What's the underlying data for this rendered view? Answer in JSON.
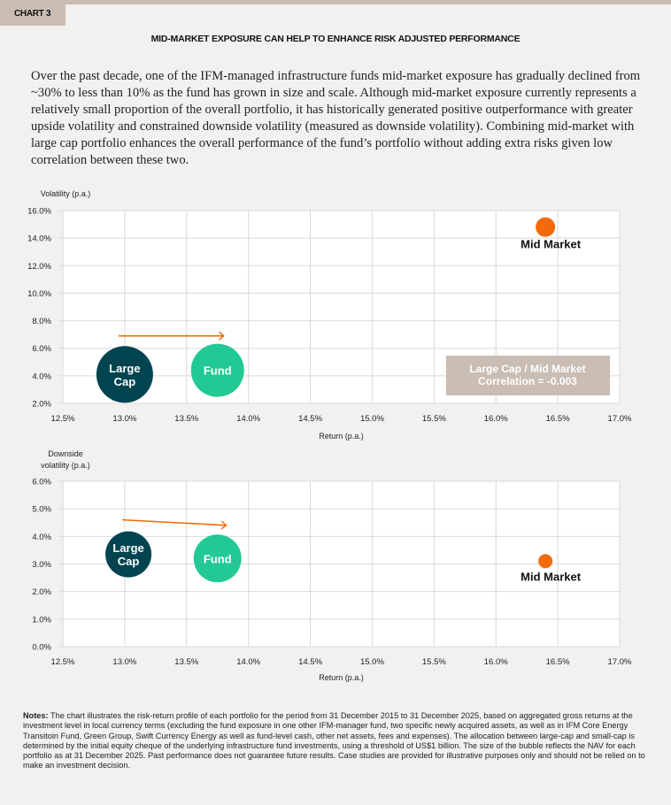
{
  "header": {
    "tag": "CHART 3",
    "title": "MID-MARKET EXPOSURE CAN HELP TO ENHANCE RISK ADJUSTED PERFORMANCE",
    "intro": "Over the past decade, one of the IFM-managed infrastructure funds mid-market exposure has gradually declined from ~30% to less than 10% as the fund has grown in size and scale. Although mid-market exposure currently represents a relatively small proportion of the overall portfolio, it has historically generated positive outperformance with greater upside volatility and constrained downside volatility (measured as downside volatility). Combining mid-market with large cap portfolio enhances the overall performance of the fund’s portfolio without adding extra risks given low correlation between these two."
  },
  "colors": {
    "large_cap": "#00444f",
    "fund": "#22c994",
    "mid_market": "#f26a0a",
    "arrow": "#f26a0a",
    "annotation_bg": "#c9bdb4",
    "grid": "#d9d9d9"
  },
  "chart_data": [
    {
      "type": "scatter",
      "ylabel": "Volatility (p.a.)",
      "xlabel": "Return (p.a.)",
      "xlim": [
        12.5,
        17.0
      ],
      "ylim": [
        2.0,
        16.0
      ],
      "xticks": [
        "12.5%",
        "13.0%",
        "13.5%",
        "14.0%",
        "14.5%",
        "15.0%",
        "15.5%",
        "16.0%",
        "16.5%",
        "17.0%"
      ],
      "yticks": [
        "2.0%",
        "4.0%",
        "6.0%",
        "8.0%",
        "10.0%",
        "12.0%",
        "14.0%",
        "16.0%"
      ],
      "grid": true,
      "points": [
        {
          "name": "Large Cap",
          "x": 13.0,
          "y": 4.1,
          "label_lines": [
            "Large",
            "Cap"
          ]
        },
        {
          "name": "Fund",
          "x": 13.75,
          "y": 4.4,
          "label_lines": [
            "Fund"
          ]
        },
        {
          "name": "Mid Market",
          "x": 16.4,
          "y": 14.8,
          "label_lines": [
            "Mid Market"
          ]
        }
      ],
      "arrow": {
        "from": [
          12.95,
          6.9
        ],
        "to": [
          13.8,
          6.9
        ]
      },
      "annotation": [
        "Large Cap / Mid Market",
        "Correlation = -0.003"
      ]
    },
    {
      "type": "scatter",
      "ylabel": "Downside volatility (p.a.)",
      "ylabel_lines": [
        "Downside",
        "volatility (p.a.)"
      ],
      "xlabel": "Return (p.a.)",
      "xlim": [
        12.5,
        17.0
      ],
      "ylim": [
        0.0,
        6.0
      ],
      "xticks": [
        "12.5%",
        "13.0%",
        "13.5%",
        "14.0%",
        "14.5%",
        "15.0%",
        "15.5%",
        "16.0%",
        "16.5%",
        "17.0%"
      ],
      "yticks": [
        "0.0%",
        "1.0%",
        "2.0%",
        "3.0%",
        "4.0%",
        "5.0%",
        "6.0%"
      ],
      "grid": true,
      "points": [
        {
          "name": "Large Cap",
          "x": 13.03,
          "y": 3.35,
          "label_lines": [
            "Large",
            "Cap"
          ]
        },
        {
          "name": "Fund",
          "x": 13.75,
          "y": 3.2,
          "label_lines": [
            "Fund"
          ]
        },
        {
          "name": "Mid Market",
          "x": 16.4,
          "y": 3.1,
          "label_lines": [
            "Mid Market"
          ]
        }
      ],
      "arrow": {
        "from": [
          12.98,
          4.6
        ],
        "to": [
          13.82,
          4.4
        ]
      }
    }
  ],
  "notes": {
    "label": "Notes:",
    "text": " The chart illustrates the risk-return profile of each portfolio for the period from 31 December 2015 to 31 December 2025, based on aggregated gross returns at the investment level in local currency terms (excluding the fund exposure in one other IFM-manager fund, two specific newly acquired assets, as well as in IFM Core Energy Transitoin Fund, Green Group, Swift Currency Energy as well as fund-level cash, other net assets, fees and expenses). The allocation between large-cap and small-cap is determined by the initial equity cheque of the underlying infrastructure fund investments, using a threshold of US$1 billion. The size of the bubble reflects the NAV for each portfolio as at 31 December 2025. Past performance does not guarantee future results. Case studies are provided for illustrative purposes only and should not be relied on to make an investment decision."
  }
}
